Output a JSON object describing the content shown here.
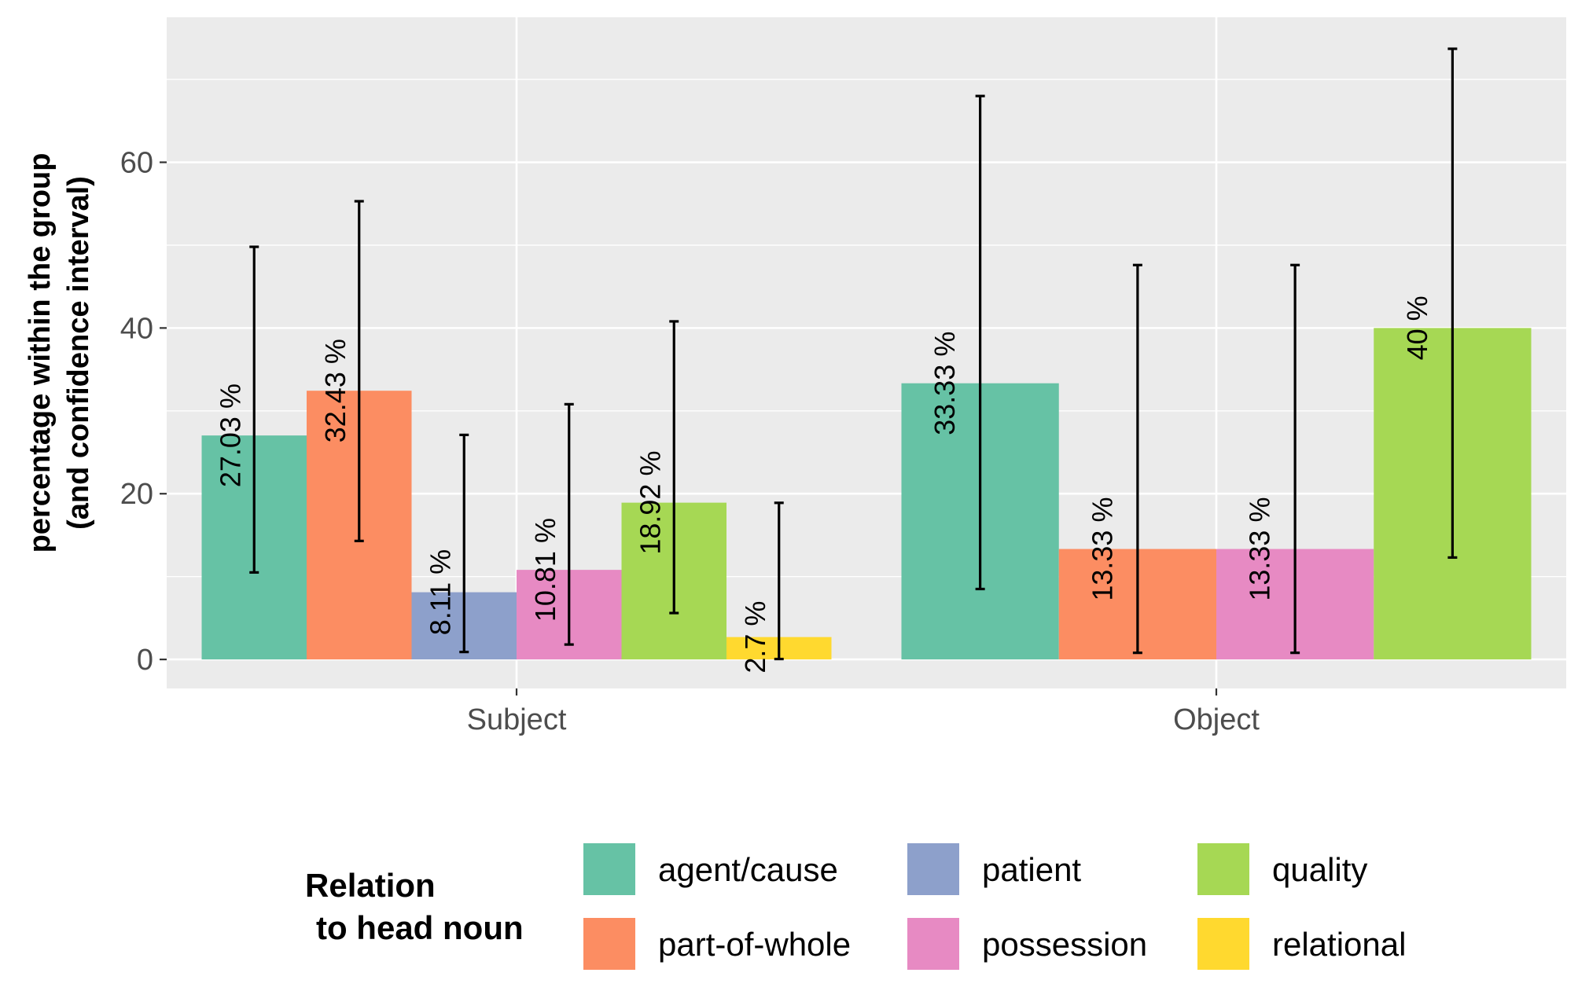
{
  "chart_data": {
    "type": "bar",
    "categories": [
      "Subject",
      "Object"
    ],
    "ylabel": [
      "percentage within the group",
      "(and confidence interval)"
    ],
    "yticks": [
      0,
      20,
      40,
      60
    ],
    "ylim": [
      -3.5,
      77.5
    ],
    "grid": true,
    "legend": {
      "title": [
        "Relation",
        "to head noun"
      ],
      "placement": "bottom"
    },
    "series": [
      {
        "name": "agent/cause",
        "color": "#66C2A5",
        "values": [
          27.03,
          33.33
        ],
        "labels": [
          "27.03 %",
          "33.33 %"
        ],
        "ci_low": [
          10.5,
          8.5
        ],
        "ci_high": [
          49.8,
          68.0
        ]
      },
      {
        "name": "part-of-whole",
        "color": "#FC8D62",
        "values": [
          32.43,
          13.33
        ],
        "labels": [
          "32.43 %",
          "13.33 %"
        ],
        "ci_low": [
          14.3,
          0.8
        ],
        "ci_high": [
          55.3,
          47.6
        ]
      },
      {
        "name": "patient",
        "color": "#8DA0CB",
        "values": [
          8.11,
          null
        ],
        "labels": [
          "8.11 %",
          ""
        ],
        "ci_low": [
          0.9,
          null
        ],
        "ci_high": [
          27.1,
          null
        ]
      },
      {
        "name": "possession",
        "color": "#E78AC3",
        "values": [
          10.81,
          13.33
        ],
        "labels": [
          "10.81 %",
          "13.33 %"
        ],
        "ci_low": [
          1.8,
          0.8
        ],
        "ci_high": [
          30.8,
          47.6
        ]
      },
      {
        "name": "quality",
        "color": "#A6D854",
        "values": [
          18.92,
          40.0
        ],
        "labels": [
          "18.92 %",
          "40 %"
        ],
        "ci_low": [
          5.6,
          12.3
        ],
        "ci_high": [
          40.8,
          73.7
        ]
      },
      {
        "name": "relational",
        "color": "#FFD92F",
        "values": [
          2.7,
          null
        ],
        "labels": [
          "2.7 %",
          ""
        ],
        "ci_low": [
          0.05,
          null
        ],
        "ci_high": [
          18.9,
          null
        ]
      }
    ]
  }
}
